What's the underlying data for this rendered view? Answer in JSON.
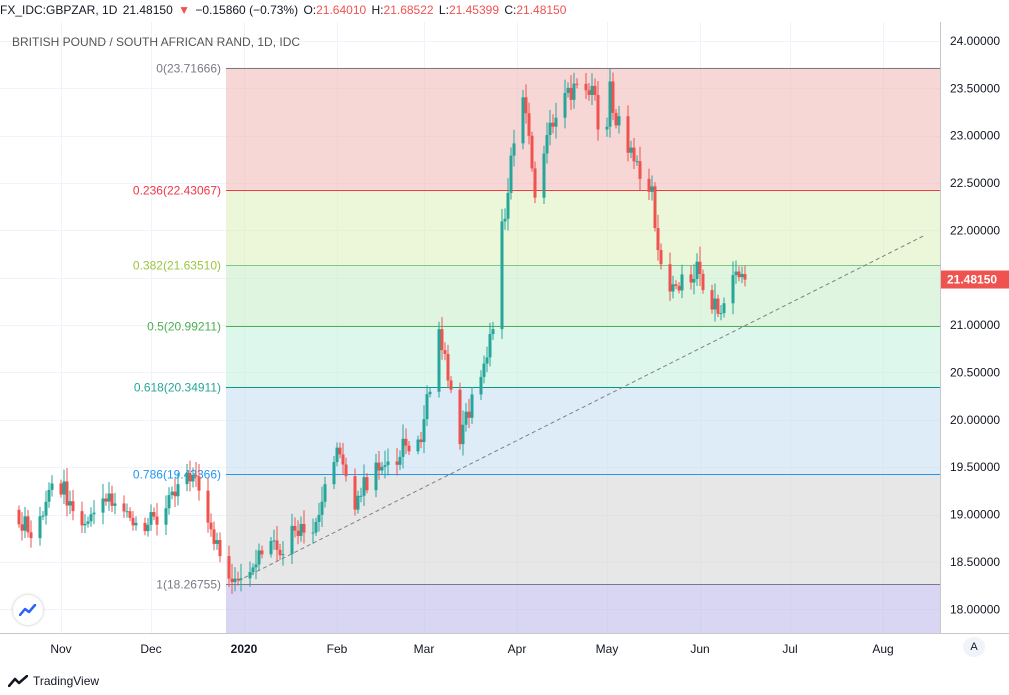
{
  "header": {
    "symbol": "FX_IDC:GBPZAR, 1D",
    "last": "21.48150",
    "change_arrow": "▼",
    "change": "−0.15860 (−0.73%)",
    "open_label": "O:",
    "open": "21.64010",
    "high_label": "H:",
    "high": "21.68522",
    "low_label": "L:",
    "low": "21.45399",
    "close_label": "C:",
    "close": "21.48150"
  },
  "footer": {
    "brand": "TradingView",
    "auto_button": "A"
  },
  "colors": {
    "up": "#26a69a",
    "down": "#ef5350",
    "price_tag": "#ef5350",
    "trendline": "#808080"
  },
  "chart_data": {
    "type": "candlestick",
    "title": "BRITISH POUND / SOUTH AFRICAN RAND, 1D, IDC",
    "ylim": [
      17.75,
      24.2
    ],
    "y_ticks": [
      "18.00000",
      "18.50000",
      "19.00000",
      "19.50000",
      "20.00000",
      "20.50000",
      "21.00000",
      "21.50000",
      "22.00000",
      "22.50000",
      "23.00000",
      "23.50000",
      "24.00000"
    ],
    "x_ticks": [
      {
        "label": "Nov",
        "day": 0,
        "bold": false
      },
      {
        "label": "Dec",
        "day": 30,
        "bold": false
      },
      {
        "label": "2020",
        "day": 61,
        "bold": true
      },
      {
        "label": "Feb",
        "day": 92,
        "bold": false
      },
      {
        "label": "Mar",
        "day": 121,
        "bold": false
      },
      {
        "label": "Apr",
        "day": 152,
        "bold": false
      },
      {
        "label": "May",
        "day": 182,
        "bold": false
      },
      {
        "label": "Jun",
        "day": 213,
        "bold": false
      },
      {
        "label": "Jul",
        "day": 243,
        "bold": false
      },
      {
        "label": "Aug",
        "day": 274,
        "bold": false
      }
    ],
    "last_price": "21.48150",
    "fib_levels": [
      {
        "label": "0(23.71666)",
        "value": 23.71666,
        "line": "#787b86",
        "fill": "#f0b4b4",
        "text": "#787b86"
      },
      {
        "label": "0.236(22.43067)",
        "value": 22.43067,
        "line": "#f23645",
        "fill": "#dcefb8",
        "text": "#f23645"
      },
      {
        "label": "0.382(21.63510)",
        "value": 21.6351,
        "line": "#81c784",
        "fill": "#c4ecc4",
        "text": "#9bc53d"
      },
      {
        "label": "0.5(20.99211)",
        "value": 20.99211,
        "line": "#4caf50",
        "fill": "#c2f0dc",
        "text": "#4caf50"
      },
      {
        "label": "0.618(20.34911)",
        "value": 20.34911,
        "line": "#089981",
        "fill": "#c2dcf2",
        "text": "#26a69a"
      },
      {
        "label": "0.786(19.43366)",
        "value": 19.43366,
        "line": "#2196f3",
        "fill": "#d4d4d4",
        "text": "#2196f3"
      },
      {
        "label": "1(18.26755)",
        "value": 18.26755,
        "line": "#787b86",
        "fill": "#b9b4ea",
        "text": "#787b86"
      }
    ],
    "fib_start_day": 55,
    "trendline": {
      "from": {
        "day": 59,
        "value": 18.3
      },
      "to": {
        "day": 288,
        "value": 21.95
      }
    },
    "anchors": [
      {
        "day": -17,
        "value": 19.05
      },
      {
        "day": -8,
        "value": 18.8
      },
      {
        "day": -2,
        "value": 19.45
      },
      {
        "day": 5,
        "value": 19.0
      },
      {
        "day": 10,
        "value": 18.9
      },
      {
        "day": 15,
        "value": 19.15
      },
      {
        "day": 22,
        "value": 19.0
      },
      {
        "day": 28,
        "value": 18.9
      },
      {
        "day": 33,
        "value": 18.95
      },
      {
        "day": 38,
        "value": 19.2
      },
      {
        "day": 42,
        "value": 19.45
      },
      {
        "day": 46,
        "value": 19.3
      },
      {
        "day": 49,
        "value": 19.0
      },
      {
        "day": 53,
        "value": 18.55
      },
      {
        "day": 56,
        "value": 18.33
      },
      {
        "day": 60,
        "value": 18.4
      },
      {
        "day": 66,
        "value": 18.6
      },
      {
        "day": 70,
        "value": 18.75
      },
      {
        "day": 74,
        "value": 18.65
      },
      {
        "day": 78,
        "value": 18.9
      },
      {
        "day": 82,
        "value": 18.8
      },
      {
        "day": 86,
        "value": 19.0
      },
      {
        "day": 89,
        "value": 19.5
      },
      {
        "day": 92,
        "value": 19.7
      },
      {
        "day": 95,
        "value": 19.35
      },
      {
        "day": 98,
        "value": 19.15
      },
      {
        "day": 102,
        "value": 19.35
      },
      {
        "day": 106,
        "value": 19.5
      },
      {
        "day": 110,
        "value": 19.45
      },
      {
        "day": 114,
        "value": 19.8
      },
      {
        "day": 118,
        "value": 19.55
      },
      {
        "day": 121,
        "value": 19.95
      },
      {
        "day": 124,
        "value": 20.6
      },
      {
        "day": 126,
        "value": 21.0
      },
      {
        "day": 128,
        "value": 20.6
      },
      {
        "day": 131,
        "value": 20.2
      },
      {
        "day": 133,
        "value": 19.85
      },
      {
        "day": 136,
        "value": 20.1
      },
      {
        "day": 139,
        "value": 20.4
      },
      {
        "day": 142,
        "value": 20.6
      },
      {
        "day": 144,
        "value": 21.05
      },
      {
        "day": 146,
        "value": 21.9
      },
      {
        "day": 148,
        "value": 22.1
      },
      {
        "day": 150,
        "value": 22.7
      },
      {
        "day": 152,
        "value": 23.35
      },
      {
        "day": 154,
        "value": 23.4
      },
      {
        "day": 156,
        "value": 22.9
      },
      {
        "day": 158,
        "value": 22.4
      },
      {
        "day": 160,
        "value": 22.5
      },
      {
        "day": 162,
        "value": 23.1
      },
      {
        "day": 165,
        "value": 23.2
      },
      {
        "day": 168,
        "value": 23.45
      },
      {
        "day": 171,
        "value": 23.5
      },
      {
        "day": 174,
        "value": 23.4
      },
      {
        "day": 177,
        "value": 23.55
      },
      {
        "day": 179,
        "value": 23.1
      },
      {
        "day": 181,
        "value": 22.6
      },
      {
        "day": 183,
        "value": 23.5
      },
      {
        "day": 185,
        "value": 23.2
      },
      {
        "day": 188,
        "value": 22.95
      },
      {
        "day": 191,
        "value": 22.8
      },
      {
        "day": 194,
        "value": 22.55
      },
      {
        "day": 197,
        "value": 22.4
      },
      {
        "day": 199,
        "value": 21.8
      },
      {
        "day": 201,
        "value": 21.45
      },
      {
        "day": 204,
        "value": 21.35
      },
      {
        "day": 207,
        "value": 21.45
      },
      {
        "day": 210,
        "value": 21.5
      },
      {
        "day": 212,
        "value": 21.6
      },
      {
        "day": 214,
        "value": 21.35
      },
      {
        "day": 217,
        "value": 21.25
      },
      {
        "day": 220,
        "value": 21.1
      },
      {
        "day": 223,
        "value": 21.5
      },
      {
        "day": 226,
        "value": 21.6
      },
      {
        "day": 228,
        "value": 21.48
      }
    ]
  }
}
